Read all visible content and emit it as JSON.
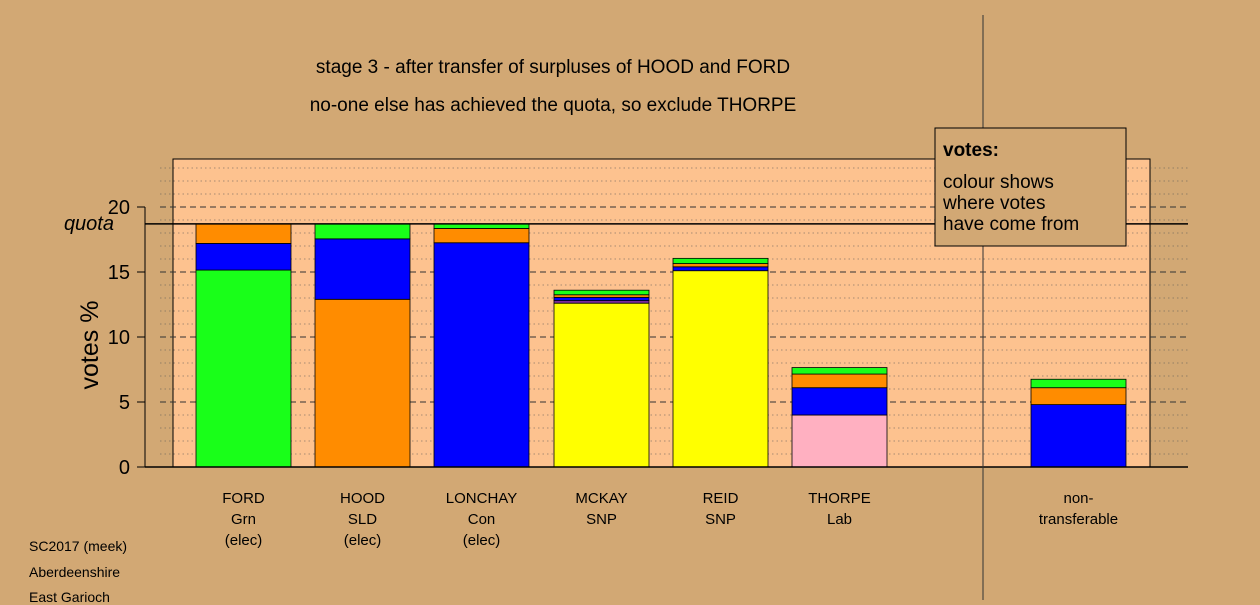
{
  "chart_data": {
    "type": "bar",
    "stacked": true,
    "title": "stage 3 - after transfer of surpluses of HOOD and FORD",
    "subtitle": "no-one else has achieved the quota, so exclude THORPE",
    "ylabel": "votes %",
    "ylim": [
      0,
      23.5
    ],
    "yticks": [
      "0",
      "5",
      "10",
      "15",
      "20"
    ],
    "quota": {
      "label": "quota",
      "value": 18.7
    },
    "grid": true,
    "legend": {
      "position": "top-right",
      "title": "votes:",
      "lines": [
        "colour shows",
        "where votes",
        "have come from"
      ]
    },
    "colors": {
      "green": "#19ff19",
      "blue": "#0000ff",
      "orange": "#ff8c00",
      "yellow": "#ffff00",
      "purple": "#7a2a99",
      "pink": "#ffb0c1",
      "panel": "#fdc28f",
      "background": "#d2a874"
    },
    "bars": [
      {
        "name": "FORD",
        "party": "Grn",
        "status": "(elec)",
        "segments": [
          {
            "color": "green",
            "value": 15.15
          },
          {
            "color": "blue",
            "value": 2.05
          },
          {
            "color": "orange",
            "value": 1.5
          }
        ]
      },
      {
        "name": "HOOD",
        "party": "SLD",
        "status": "(elec)",
        "segments": [
          {
            "color": "orange",
            "value": 12.9
          },
          {
            "color": "blue",
            "value": 4.65
          },
          {
            "color": "green",
            "value": 1.15
          }
        ]
      },
      {
        "name": "LONCHAY",
        "party": "Con",
        "status": "(elec)",
        "segments": [
          {
            "color": "blue",
            "value": 17.25
          },
          {
            "color": "orange",
            "value": 1.1
          },
          {
            "color": "green",
            "value": 0.35
          }
        ]
      },
      {
        "name": "MCKAY",
        "party": "SNP",
        "status": "",
        "segments": [
          {
            "color": "yellow",
            "value": 12.6
          },
          {
            "color": "purple",
            "value": 0.2
          },
          {
            "color": "blue",
            "value": 0.25
          },
          {
            "color": "orange",
            "value": 0.2
          },
          {
            "color": "green",
            "value": 0.35
          }
        ]
      },
      {
        "name": "REID",
        "party": "SNP",
        "status": "",
        "segments": [
          {
            "color": "yellow",
            "value": 15.1
          },
          {
            "color": "blue",
            "value": 0.3
          },
          {
            "color": "orange",
            "value": 0.25
          },
          {
            "color": "green",
            "value": 0.4
          }
        ]
      },
      {
        "name": "THORPE",
        "party": "Lab",
        "status": "",
        "segments": [
          {
            "color": "pink",
            "value": 4.0
          },
          {
            "color": "blue",
            "value": 2.1
          },
          {
            "color": "orange",
            "value": 1.05
          },
          {
            "color": "green",
            "value": 0.5
          }
        ]
      },
      {
        "name": "non-",
        "party": "transferable",
        "status": "",
        "segments": [
          {
            "color": "blue",
            "value": 4.8
          },
          {
            "color": "orange",
            "value": 1.3
          },
          {
            "color": "green",
            "value": 0.65
          }
        ]
      }
    ]
  },
  "footer": {
    "lines": [
      "SC2017 (meek)",
      "Aberdeenshire",
      "East Garioch"
    ]
  }
}
